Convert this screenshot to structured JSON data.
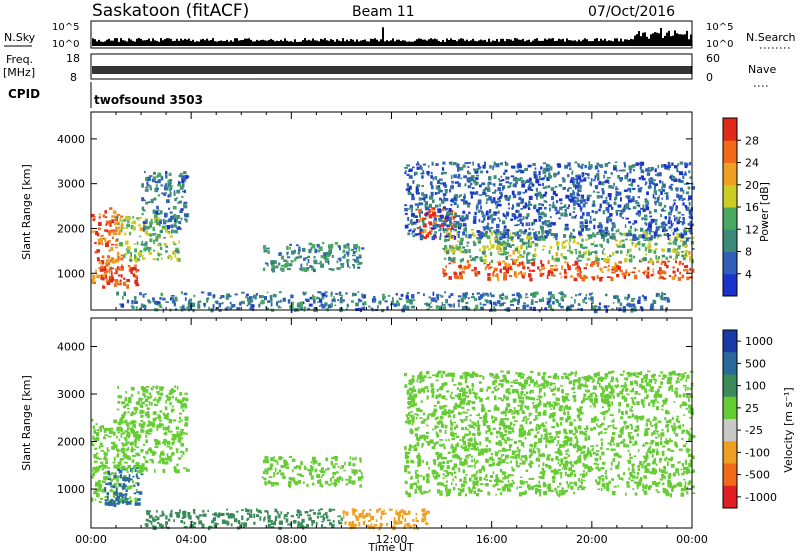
{
  "header": {
    "station": "Saskatoon (fitACF)",
    "beam": "Beam 11",
    "date": "07/Oct/2016"
  },
  "top_strips": {
    "nsky_label": "N.Sky",
    "nsearch_label": "N.Search",
    "nsky_ticks": [
      "10^5",
      "10^0"
    ],
    "nsearch_ticks": [
      "10^5",
      "10^0"
    ],
    "freq_label_1": "Freq.",
    "freq_label_2": "[MHz]",
    "freq_ticks": [
      "18",
      "8"
    ],
    "nave_label": "Nave",
    "nave_ticks": [
      "60",
      "0"
    ],
    "cpid_label": "CPID",
    "cpid_value": "twofsound 3503"
  },
  "colors": {
    "power_scale": [
      "#1a33cc",
      "#2f5fb8",
      "#3d8a7a",
      "#4aa860",
      "#cccc22",
      "#f0a020",
      "#f06a1a",
      "#e02a1a"
    ],
    "velocity_scale": [
      "#1a3aa8",
      "#2a6a9a",
      "#3a8a5a",
      "#66cc33",
      "#c8c8c4",
      "#f0a020",
      "#f06a1a",
      "#e02020"
    ],
    "background": "#ffffff"
  },
  "chart_data": [
    {
      "type": "heatmap",
      "name_role": "power panel",
      "xlabel": "Time UT",
      "ylabel": "Slant Range [km]",
      "x_ticks": [
        "00:00",
        "04:00",
        "08:00",
        "12:00",
        "16:00",
        "20:00",
        "00:00"
      ],
      "y_ticks": [
        1000,
        2000,
        3000,
        4000
      ],
      "xlim_hours": [
        0,
        24
      ],
      "ylim_km": [
        180,
        4600
      ],
      "colorbar_label": "Power [dB]",
      "colorbar_ticks": [
        4,
        8,
        12,
        16,
        20,
        24,
        28
      ],
      "colorbar_range": [
        0,
        30
      ],
      "regions": [
        {
          "t0": 0.0,
          "t1": 1.2,
          "r0": 800,
          "r1": 2500,
          "level": 24
        },
        {
          "t0": 0.4,
          "t1": 1.9,
          "r0": 700,
          "r1": 1200,
          "level": 28
        },
        {
          "t0": 1.0,
          "t1": 3.5,
          "r0": 1300,
          "r1": 2300,
          "level": 14
        },
        {
          "t0": 2.0,
          "t1": 3.8,
          "r0": 2000,
          "r1": 3300,
          "level": 8
        },
        {
          "t0": 6.8,
          "t1": 10.8,
          "r0": 1100,
          "r1": 1700,
          "level": 10
        },
        {
          "t0": 13.0,
          "t1": 14.5,
          "r0": 1800,
          "r1": 2500,
          "level": 26
        },
        {
          "t0": 14.0,
          "t1": 24.0,
          "r0": 900,
          "r1": 1300,
          "level": 26
        },
        {
          "t0": 14.0,
          "t1": 24.0,
          "r0": 1300,
          "r1": 2000,
          "level": 14
        },
        {
          "t0": 12.5,
          "t1": 24.0,
          "r0": 1800,
          "r1": 3500,
          "level": 6
        },
        {
          "t0": 1.0,
          "t1": 23.0,
          "r0": 200,
          "r1": 600,
          "level": 8
        }
      ]
    },
    {
      "type": "heatmap",
      "name_role": "velocity panel",
      "xlabel": "Time UT",
      "ylabel": "Slant Range [km]",
      "x_ticks": [
        "00:00",
        "04:00",
        "08:00",
        "12:00",
        "16:00",
        "20:00",
        "00:00"
      ],
      "y_ticks": [
        1000,
        2000,
        3000,
        4000
      ],
      "xlim_hours": [
        0,
        24
      ],
      "ylim_km": [
        180,
        4600
      ],
      "colorbar_label": "Velocity [m s⁻¹]",
      "colorbar_ticks": [
        "1000",
        "500",
        "100",
        "25",
        "-25",
        "-100",
        "-500",
        "-1000"
      ],
      "regions": [
        {
          "t0": 0.0,
          "t1": 1.8,
          "r0": 700,
          "r1": 2500,
          "level": "25"
        },
        {
          "t0": 0.5,
          "t1": 2.0,
          "r0": 700,
          "r1": 1500,
          "level": "500"
        },
        {
          "t0": 1.0,
          "t1": 3.8,
          "r0": 1400,
          "r1": 3200,
          "level": "25"
        },
        {
          "t0": 6.8,
          "t1": 10.8,
          "r0": 1100,
          "r1": 1700,
          "level": "25"
        },
        {
          "t0": 12.5,
          "t1": 24.0,
          "r0": 900,
          "r1": 3500,
          "level": "25"
        },
        {
          "t0": 10.0,
          "t1": 13.5,
          "r0": 200,
          "r1": 600,
          "level": "-100"
        },
        {
          "t0": 2.0,
          "t1": 10.0,
          "r0": 200,
          "r1": 600,
          "level": "100"
        }
      ]
    }
  ]
}
